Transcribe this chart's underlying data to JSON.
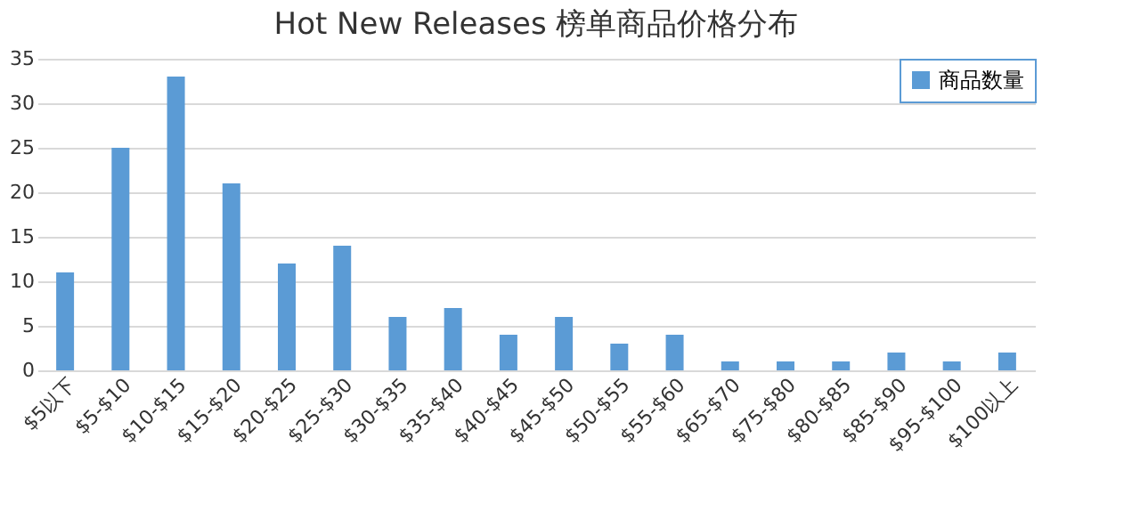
{
  "chart_data": {
    "type": "bar",
    "title": "Hot New Releases 榜单商品价格分布",
    "categories": [
      "$5以下",
      "$5-$10",
      "$10-$15",
      "$15-$20",
      "$20-$25",
      "$25-$30",
      "$30-$35",
      "$35-$40",
      "$40-$45",
      "$45-$50",
      "$50-$55",
      "$55-$60",
      "$65-$70",
      "$75-$80",
      "$80-$85",
      "$85-$90",
      "$95-$100",
      "$100以上"
    ],
    "series": [
      {
        "name": "商品数量",
        "color": "#5b9bd5",
        "values": [
          11,
          25,
          33,
          21,
          12,
          14,
          6,
          7,
          4,
          6,
          3,
          4,
          1,
          1,
          1,
          2,
          1,
          2
        ]
      }
    ],
    "ylim": [
      0,
      35
    ],
    "yticks": [
      0,
      5,
      10,
      15,
      20,
      25,
      30,
      35
    ],
    "grid": "y",
    "legend": "top right"
  }
}
